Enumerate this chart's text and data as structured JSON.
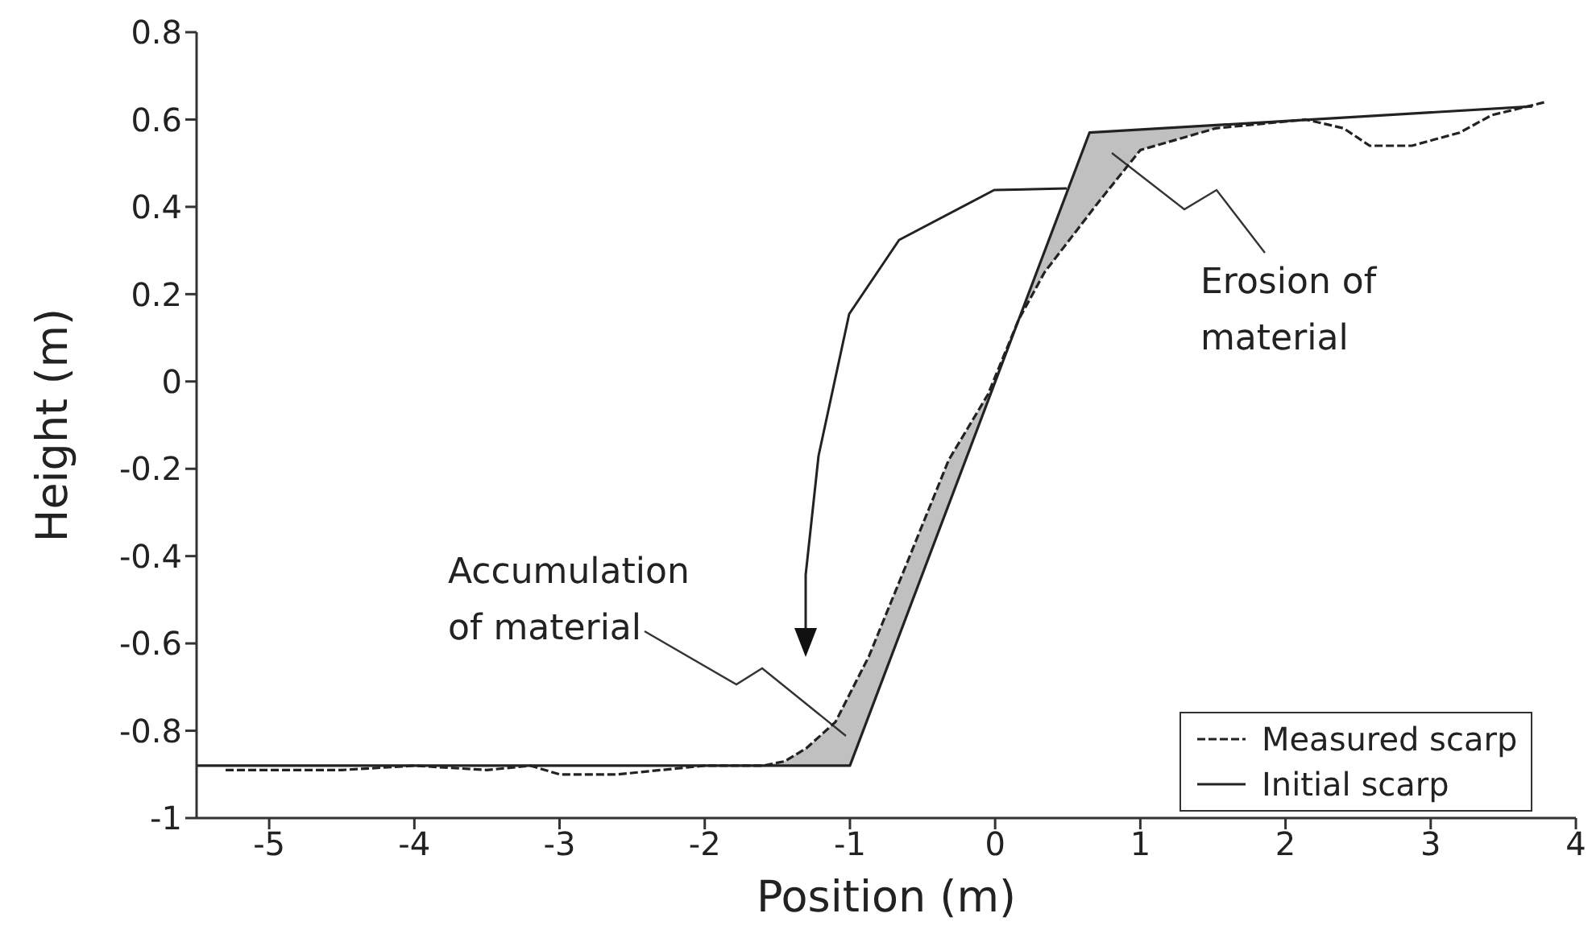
{
  "chart_data": {
    "type": "line",
    "xlabel": "Position (m)",
    "ylabel": "Height (m)",
    "xlim": [
      -5.5,
      4
    ],
    "xticks": [
      -5,
      -4,
      -3,
      -2,
      -1,
      0,
      1,
      2,
      3,
      4
    ],
    "ylim": [
      -1,
      0.8
    ],
    "yticks": [
      -1,
      -0.8,
      -0.6,
      -0.4,
      -0.2,
      0,
      0.2,
      0.4,
      0.6,
      0.8
    ],
    "grid": false,
    "legend": "bottom right",
    "marker": "none",
    "series": [
      {
        "name": "Measured scarp",
        "color": "#222222",
        "line_style": "dashed",
        "x": [
          -5.3,
          -4.5,
          -4.0,
          -3.5,
          -3.2,
          -3.0,
          -2.6,
          -2.0,
          -1.6,
          -1.45,
          -1.3,
          -1.1,
          -0.87,
          -0.6,
          -0.32,
          -0.05,
          0.16,
          0.34,
          0.71,
          1.0,
          1.52,
          2.14,
          2.4,
          2.58,
          2.87,
          3.2,
          3.42,
          3.79
        ],
        "values": [
          -0.89,
          -0.89,
          -0.88,
          -0.89,
          -0.88,
          -0.9,
          -0.9,
          -0.88,
          -0.88,
          -0.87,
          -0.84,
          -0.78,
          -0.63,
          -0.41,
          -0.18,
          -0.03,
          0.14,
          0.25,
          0.41,
          0.53,
          0.58,
          0.6,
          0.58,
          0.54,
          0.54,
          0.57,
          0.61,
          0.64
        ]
      },
      {
        "name": "Initial scarp",
        "color": "#222222",
        "line_style": "solid",
        "x": [
          -5.5,
          -1.0,
          0.65,
          3.7
        ],
        "values": [
          -0.88,
          -0.88,
          0.57,
          0.63
        ]
      }
    ],
    "annotations": [
      "Accumulation\nof material",
      "Erosion of\nmaterial"
    ]
  }
}
